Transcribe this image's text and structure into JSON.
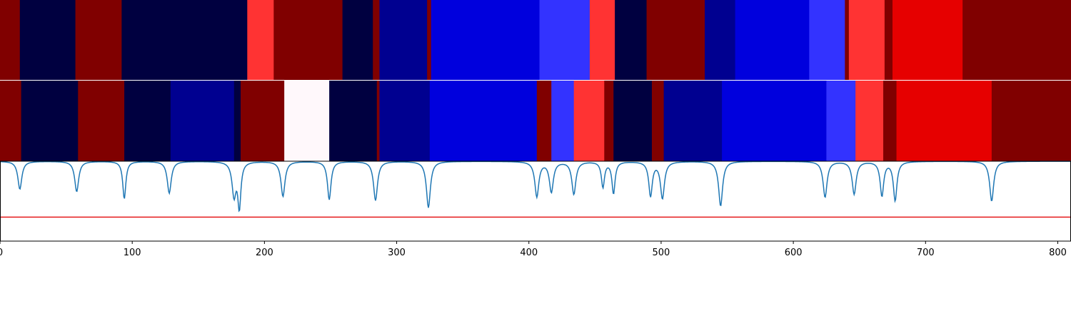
{
  "chart_data": {
    "type": "heatmap",
    "xlim": [
      0,
      810
    ],
    "x_ticks": [
      "0",
      "100",
      "200",
      "300",
      "400",
      "500",
      "600",
      "700",
      "800"
    ],
    "x_tick_values": [
      0,
      100,
      200,
      300,
      400,
      500,
      600,
      700,
      800
    ],
    "colormap": "seismic",
    "colors": {
      "line": "#1f77b4",
      "threshold": "#e41a1c",
      "dark_red": "#800000",
      "light_red": "#ff3333",
      "red": "#e60000",
      "navy": "#000040",
      "dark_blue": "#000090",
      "blue": "#0000dd",
      "light_blue": "#3333ff",
      "white": "#fff8fb"
    },
    "segmentation_rows": [
      {
        "segments": [
          {
            "start": 0,
            "end": 15,
            "color": "#800000"
          },
          {
            "start": 15,
            "end": 57,
            "color": "#000040"
          },
          {
            "start": 57,
            "end": 92,
            "color": "#800000"
          },
          {
            "start": 92,
            "end": 187,
            "color": "#000040"
          },
          {
            "start": 187,
            "end": 207,
            "color": "#ff3333"
          },
          {
            "start": 207,
            "end": 259,
            "color": "#800000"
          },
          {
            "start": 259,
            "end": 282,
            "color": "#000040"
          },
          {
            "start": 282,
            "end": 287,
            "color": "#800000"
          },
          {
            "start": 287,
            "end": 323,
            "color": "#000090"
          },
          {
            "start": 323,
            "end": 326,
            "color": "#800000"
          },
          {
            "start": 326,
            "end": 408,
            "color": "#0000dd"
          },
          {
            "start": 408,
            "end": 446,
            "color": "#3333ff"
          },
          {
            "start": 446,
            "end": 465,
            "color": "#ff3333"
          },
          {
            "start": 465,
            "end": 489,
            "color": "#000040"
          },
          {
            "start": 489,
            "end": 533,
            "color": "#800000"
          },
          {
            "start": 533,
            "end": 556,
            "color": "#000090"
          },
          {
            "start": 556,
            "end": 612,
            "color": "#0000dd"
          },
          {
            "start": 612,
            "end": 639,
            "color": "#3333ff"
          },
          {
            "start": 639,
            "end": 642,
            "color": "#800000"
          },
          {
            "start": 642,
            "end": 669,
            "color": "#ff3333"
          },
          {
            "start": 669,
            "end": 675,
            "color": "#800000"
          },
          {
            "start": 675,
            "end": 728,
            "color": "#e60000"
          },
          {
            "start": 728,
            "end": 810,
            "color": "#800000"
          }
        ]
      },
      {
        "segments": [
          {
            "start": 0,
            "end": 16,
            "color": "#800000"
          },
          {
            "start": 16,
            "end": 59,
            "color": "#000040"
          },
          {
            "start": 59,
            "end": 94,
            "color": "#800000"
          },
          {
            "start": 94,
            "end": 129,
            "color": "#000040"
          },
          {
            "start": 129,
            "end": 177,
            "color": "#000090"
          },
          {
            "start": 177,
            "end": 182,
            "color": "#000040"
          },
          {
            "start": 182,
            "end": 215,
            "color": "#800000"
          },
          {
            "start": 215,
            "end": 249,
            "color": "#fff8fb"
          },
          {
            "start": 249,
            "end": 285,
            "color": "#000040"
          },
          {
            "start": 285,
            "end": 287,
            "color": "#800000"
          },
          {
            "start": 287,
            "end": 325,
            "color": "#000090"
          },
          {
            "start": 325,
            "end": 406,
            "color": "#0000dd"
          },
          {
            "start": 406,
            "end": 417,
            "color": "#800000"
          },
          {
            "start": 417,
            "end": 434,
            "color": "#3333ff"
          },
          {
            "start": 434,
            "end": 457,
            "color": "#ff3333"
          },
          {
            "start": 457,
            "end": 464,
            "color": "#800000"
          },
          {
            "start": 464,
            "end": 493,
            "color": "#000040"
          },
          {
            "start": 493,
            "end": 502,
            "color": "#800000"
          },
          {
            "start": 502,
            "end": 546,
            "color": "#000090"
          },
          {
            "start": 546,
            "end": 625,
            "color": "#0000dd"
          },
          {
            "start": 625,
            "end": 647,
            "color": "#3333ff"
          },
          {
            "start": 647,
            "end": 668,
            "color": "#ff3333"
          },
          {
            "start": 668,
            "end": 678,
            "color": "#800000"
          },
          {
            "start": 678,
            "end": 750,
            "color": "#e60000"
          },
          {
            "start": 750,
            "end": 810,
            "color": "#800000"
          }
        ]
      }
    ],
    "boundary_curve": {
      "ylim": [
        0,
        1
      ],
      "threshold": 0.3,
      "baseline": 1.0,
      "dips": [
        {
          "x": 15,
          "depth": 0.35,
          "width": 1.8
        },
        {
          "x": 58,
          "depth": 0.38,
          "width": 1.8
        },
        {
          "x": 94,
          "depth": 0.47,
          "width": 1.4
        },
        {
          "x": 128,
          "depth": 0.4,
          "width": 1.8
        },
        {
          "x": 177,
          "depth": 0.42,
          "width": 1.8
        },
        {
          "x": 181,
          "depth": 0.56,
          "width": 1.4
        },
        {
          "x": 214,
          "depth": 0.44,
          "width": 1.8
        },
        {
          "x": 249,
          "depth": 0.48,
          "width": 1.6
        },
        {
          "x": 284,
          "depth": 0.49,
          "width": 1.8
        },
        {
          "x": 324,
          "depth": 0.58,
          "width": 1.8
        },
        {
          "x": 406,
          "depth": 0.44,
          "width": 1.8
        },
        {
          "x": 417,
          "depth": 0.38,
          "width": 1.8
        },
        {
          "x": 434,
          "depth": 0.41,
          "width": 1.8
        },
        {
          "x": 456,
          "depth": 0.32,
          "width": 1.4
        },
        {
          "x": 464,
          "depth": 0.4,
          "width": 1.4
        },
        {
          "x": 492,
          "depth": 0.43,
          "width": 1.6
        },
        {
          "x": 501,
          "depth": 0.46,
          "width": 1.8
        },
        {
          "x": 545,
          "depth": 0.56,
          "width": 1.8
        },
        {
          "x": 624,
          "depth": 0.45,
          "width": 1.8
        },
        {
          "x": 646,
          "depth": 0.41,
          "width": 1.8
        },
        {
          "x": 667,
          "depth": 0.43,
          "width": 1.6
        },
        {
          "x": 677,
          "depth": 0.49,
          "width": 1.6
        },
        {
          "x": 750,
          "depth": 0.5,
          "width": 1.8
        }
      ]
    }
  }
}
